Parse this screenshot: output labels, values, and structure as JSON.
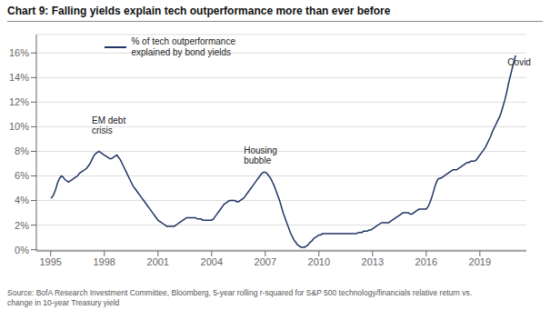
{
  "chart_data": {
    "type": "line",
    "title": "Chart 9: Falling yields explain tech outperformance more than ever before",
    "source": "Source: BofA Research Investment Committee, Bloomberg, 5-year rolling r-squared for S&P 500 technology/financials relative return vs.\nchange in 10-year Treasury yield",
    "annotations": [
      {
        "text": "EM debt\ncrisis",
        "x": 1997.3,
        "y": 0.092
      },
      {
        "text": "Housing\nbubble",
        "x": 2005.8,
        "y": 0.068
      },
      {
        "text": "Covid",
        "x": 2020.55,
        "y": 0.148
      }
    ],
    "xlim": [
      1994.2,
      2021.6
    ],
    "ylim": [
      -0.001,
      0.175
    ],
    "xticks": [
      1995,
      1998,
      2001,
      2004,
      2007,
      2010,
      2013,
      2016,
      2019
    ],
    "yticks": [
      {
        "value": 0.0,
        "label": "0%"
      },
      {
        "value": 0.02,
        "label": "2%"
      },
      {
        "value": 0.04,
        "label": "4%"
      },
      {
        "value": 0.06,
        "label": "6%"
      },
      {
        "value": 0.08,
        "label": "8%"
      },
      {
        "value": 0.1,
        "label": "10%"
      },
      {
        "value": 0.12,
        "label": "12%"
      },
      {
        "value": 0.14,
        "label": "14%"
      },
      {
        "value": 0.16,
        "label": "16%"
      }
    ],
    "grid": true,
    "legend": "upper left",
    "x": [
      1995.0,
      1995.1,
      1995.2,
      1995.3,
      1995.4,
      1995.5,
      1995.6,
      1995.7,
      1995.8,
      1995.9,
      1996.0,
      1996.1,
      1996.2,
      1996.3,
      1996.4,
      1996.5,
      1996.6,
      1996.7,
      1996.8,
      1996.9,
      1997.0,
      1997.1,
      1997.2,
      1997.3,
      1997.4,
      1997.5,
      1997.6,
      1997.7,
      1997.8,
      1997.9,
      1998.0,
      1998.1,
      1998.2,
      1998.3,
      1998.4,
      1998.5,
      1998.6,
      1998.7,
      1998.8,
      1998.9,
      1999.0,
      1999.1,
      1999.2,
      1999.3,
      1999.4,
      1999.5,
      1999.6,
      1999.7,
      1999.8,
      1999.9,
      2000.0,
      2000.1,
      2000.2,
      2000.3,
      2000.4,
      2000.5,
      2000.6,
      2000.7,
      2000.8,
      2000.9,
      2001.0,
      2001.1,
      2001.2,
      2001.3,
      2001.4,
      2001.5,
      2001.6,
      2001.7,
      2001.8,
      2001.9,
      2002.0,
      2002.1,
      2002.2,
      2002.3,
      2002.4,
      2002.5,
      2002.6,
      2002.7,
      2002.8,
      2002.9,
      2003.0,
      2003.1,
      2003.2,
      2003.3,
      2003.4,
      2003.5,
      2003.6,
      2003.7,
      2003.8,
      2003.9,
      2004.0,
      2004.1,
      2004.2,
      2004.3,
      2004.4,
      2004.5,
      2004.6,
      2004.7,
      2004.8,
      2004.9,
      2005.0,
      2005.1,
      2005.2,
      2005.3,
      2005.4,
      2005.5,
      2005.6,
      2005.7,
      2005.8,
      2005.9,
      2006.0,
      2006.1,
      2006.2,
      2006.3,
      2006.4,
      2006.5,
      2006.6,
      2006.7,
      2006.8,
      2006.9,
      2007.0,
      2007.1,
      2007.2,
      2007.3,
      2007.4,
      2007.5,
      2007.6,
      2007.7,
      2007.8,
      2007.9,
      2008.0,
      2008.1,
      2008.2,
      2008.3,
      2008.4,
      2008.5,
      2008.6,
      2008.7,
      2008.8,
      2008.9,
      2009.0,
      2009.1,
      2009.2,
      2009.3,
      2009.4,
      2009.5,
      2009.6,
      2009.7,
      2009.8,
      2009.9,
      2010.0,
      2010.1,
      2010.2,
      2010.3,
      2010.4,
      2010.5,
      2010.6,
      2010.7,
      2010.8,
      2010.9,
      2011.0,
      2011.1,
      2011.2,
      2011.3,
      2011.4,
      2011.5,
      2011.6,
      2011.7,
      2011.8,
      2011.9,
      2012.0,
      2012.1,
      2012.2,
      2012.3,
      2012.4,
      2012.5,
      2012.6,
      2012.7,
      2012.8,
      2012.9,
      2013.0,
      2013.1,
      2013.2,
      2013.3,
      2013.4,
      2013.5,
      2013.6,
      2013.7,
      2013.8,
      2013.9,
      2014.0,
      2014.1,
      2014.2,
      2014.3,
      2014.4,
      2014.5,
      2014.6,
      2014.7,
      2014.8,
      2014.9,
      2015.0,
      2015.1,
      2015.2,
      2015.3,
      2015.4,
      2015.5,
      2015.6,
      2015.7,
      2015.8,
      2015.9,
      2016.0,
      2016.1,
      2016.2,
      2016.3,
      2016.4,
      2016.5,
      2016.6,
      2016.7,
      2016.8,
      2016.9,
      2017.0,
      2017.1,
      2017.2,
      2017.3,
      2017.4,
      2017.5,
      2017.6,
      2017.7,
      2017.8,
      2017.9,
      2018.0,
      2018.1,
      2018.2,
      2018.3,
      2018.4,
      2018.5,
      2018.6,
      2018.7,
      2018.8,
      2018.9,
      2019.0,
      2019.1,
      2019.2,
      2019.3,
      2019.4,
      2019.5,
      2019.6,
      2019.7,
      2019.8,
      2019.9,
      2020.0,
      2020.1,
      2020.2,
      2020.3,
      2020.4,
      2020.5,
      2020.6,
      2020.7,
      2020.8,
      2020.9,
      2021.0
    ],
    "series": [
      {
        "name": "% of tech outperformance\nexplained by bond yields",
        "color": "#1f3464",
        "values": [
          0.042,
          0.043,
          0.046,
          0.05,
          0.055,
          0.058,
          0.06,
          0.059,
          0.057,
          0.056,
          0.055,
          0.056,
          0.057,
          0.058,
          0.059,
          0.06,
          0.062,
          0.063,
          0.064,
          0.065,
          0.066,
          0.068,
          0.07,
          0.073,
          0.076,
          0.078,
          0.079,
          0.08,
          0.079,
          0.078,
          0.077,
          0.076,
          0.075,
          0.074,
          0.074,
          0.075,
          0.076,
          0.077,
          0.075,
          0.073,
          0.07,
          0.067,
          0.064,
          0.061,
          0.058,
          0.055,
          0.052,
          0.05,
          0.048,
          0.046,
          0.044,
          0.042,
          0.04,
          0.038,
          0.036,
          0.034,
          0.032,
          0.03,
          0.028,
          0.026,
          0.024,
          0.023,
          0.022,
          0.021,
          0.02,
          0.019,
          0.019,
          0.019,
          0.019,
          0.019,
          0.02,
          0.021,
          0.022,
          0.023,
          0.024,
          0.025,
          0.026,
          0.026,
          0.026,
          0.026,
          0.026,
          0.026,
          0.025,
          0.025,
          0.025,
          0.024,
          0.024,
          0.024,
          0.024,
          0.024,
          0.024,
          0.025,
          0.027,
          0.029,
          0.031,
          0.033,
          0.035,
          0.037,
          0.038,
          0.039,
          0.04,
          0.04,
          0.04,
          0.04,
          0.039,
          0.039,
          0.04,
          0.041,
          0.042,
          0.044,
          0.046,
          0.048,
          0.05,
          0.052,
          0.054,
          0.056,
          0.058,
          0.06,
          0.062,
          0.063,
          0.063,
          0.062,
          0.06,
          0.058,
          0.055,
          0.052,
          0.048,
          0.044,
          0.04,
          0.035,
          0.03,
          0.026,
          0.022,
          0.018,
          0.014,
          0.011,
          0.008,
          0.006,
          0.004,
          0.003,
          0.002,
          0.002,
          0.002,
          0.003,
          0.004,
          0.006,
          0.007,
          0.009,
          0.01,
          0.011,
          0.012,
          0.012,
          0.013,
          0.013,
          0.013,
          0.013,
          0.013,
          0.013,
          0.013,
          0.013,
          0.013,
          0.013,
          0.013,
          0.013,
          0.013,
          0.013,
          0.013,
          0.013,
          0.013,
          0.013,
          0.013,
          0.013,
          0.014,
          0.014,
          0.014,
          0.015,
          0.015,
          0.015,
          0.016,
          0.016,
          0.017,
          0.018,
          0.019,
          0.02,
          0.021,
          0.022,
          0.022,
          0.022,
          0.022,
          0.022,
          0.023,
          0.024,
          0.025,
          0.026,
          0.027,
          0.028,
          0.029,
          0.03,
          0.03,
          0.03,
          0.03,
          0.029,
          0.029,
          0.03,
          0.031,
          0.032,
          0.033,
          0.033,
          0.033,
          0.033,
          0.033,
          0.035,
          0.038,
          0.042,
          0.047,
          0.052,
          0.056,
          0.058,
          0.058,
          0.059,
          0.06,
          0.061,
          0.062,
          0.063,
          0.064,
          0.065,
          0.065,
          0.065,
          0.066,
          0.067,
          0.068,
          0.069,
          0.07,
          0.071,
          0.071,
          0.072,
          0.072,
          0.072,
          0.073,
          0.075,
          0.077,
          0.079,
          0.081,
          0.083,
          0.086,
          0.089,
          0.092,
          0.096,
          0.099,
          0.102,
          0.105,
          0.108,
          0.112,
          0.117,
          0.122,
          0.128,
          0.135,
          0.141,
          0.147,
          0.153,
          0.158
        ]
      }
    ]
  }
}
